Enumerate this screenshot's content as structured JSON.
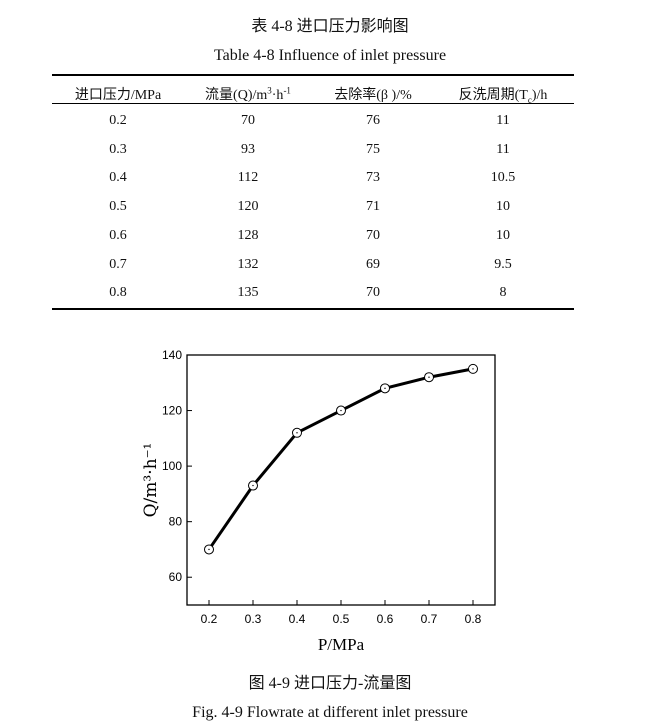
{
  "table": {
    "title_cn": "表 4-8  进口压力影响图",
    "title_en": "Table 4-8 Influence of inlet pressure",
    "headers": [
      {
        "main": "进口压力/MPa"
      },
      {
        "main": "流量(Q)/m",
        "sup1": "3",
        "mid": "·h",
        "sup2": "-1"
      },
      {
        "main": "去除率(β )/%"
      },
      {
        "main": "反洗周期(T",
        "sub": "c",
        "tail": ")/h"
      }
    ],
    "rows": [
      [
        "0.2",
        "70",
        "76",
        "11"
      ],
      [
        "0.3",
        "93",
        "75",
        "11"
      ],
      [
        "0.4",
        "112",
        "73",
        "10.5"
      ],
      [
        "0.5",
        "120",
        "71",
        "10"
      ],
      [
        "0.6",
        "128",
        "70",
        "10"
      ],
      [
        "0.7",
        "132",
        "69",
        "9.5"
      ],
      [
        "0.8",
        "135",
        "70",
        "8"
      ]
    ]
  },
  "figure": {
    "caption_cn": "图 4-9  进口压力-流量图",
    "caption_en": "Fig. 4-9 Flowrate at different inlet pressure"
  },
  "chart_data": {
    "type": "line",
    "title": "",
    "xlabel": "P/MPa",
    "ylabel": "Q/m³·h⁻¹",
    "ylabel_parts": {
      "a": "Q/m",
      "sup1": "3",
      "b": "·h",
      "sup2": "-1"
    },
    "x": [
      0.2,
      0.3,
      0.4,
      0.5,
      0.6,
      0.7,
      0.8
    ],
    "series": [
      {
        "name": "Q",
        "values": [
          70,
          93,
          112,
          120,
          128,
          132,
          135
        ],
        "marker": "open-circle",
        "color": "#000000"
      }
    ],
    "xlim": [
      0.15,
      0.85
    ],
    "ylim": [
      50,
      140
    ],
    "xticks": [
      "0.2",
      "0.3",
      "0.4",
      "0.5",
      "0.6",
      "0.7",
      "0.8"
    ],
    "yticks": [
      "60",
      "80",
      "100",
      "120",
      "140"
    ],
    "grid": false
  }
}
